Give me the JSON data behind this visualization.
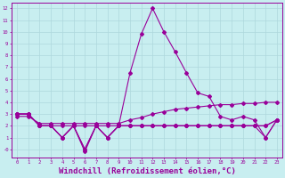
{
  "bg_color": "#c8eef0",
  "grid_color": "#aed8dc",
  "line_color": "#990099",
  "xlabel": "Windchill (Refroidissement éolien,°C)",
  "xlabel_fontsize": 6.5,
  "ylim": [
    -0.7,
    12.5
  ],
  "xlim": [
    -0.5,
    23.5
  ],
  "xtick_labels": [
    "0",
    "1",
    "2",
    "3",
    "4",
    "5",
    "6",
    "7",
    "8",
    "9",
    "10",
    "11",
    "12",
    "13",
    "14",
    "15",
    "16",
    "17",
    "18",
    "19",
    "20",
    "21",
    "22",
    "23"
  ],
  "ytick_labels": [
    "-0",
    "1",
    "2",
    "3",
    "4",
    "5",
    "6",
    "7",
    "8",
    "9",
    "10",
    "11",
    "12"
  ],
  "ytick_values": [
    0,
    1,
    2,
    3,
    4,
    5,
    6,
    7,
    8,
    9,
    10,
    11,
    12
  ],
  "lines": [
    {
      "x": [
        0,
        1,
        2,
        3,
        4,
        5,
        6,
        7,
        8,
        9,
        10,
        11,
        12,
        13,
        14,
        15,
        16,
        17,
        18,
        19,
        20,
        21,
        22,
        23
      ],
      "y": [
        3,
        3,
        2,
        2,
        2,
        2,
        2,
        2,
        2,
        2,
        2,
        2,
        2,
        2,
        2,
        2,
        2,
        2,
        2,
        2,
        2,
        2,
        2,
        2.5
      ]
    },
    {
      "x": [
        0,
        1,
        2,
        3,
        4,
        5,
        6,
        7,
        8,
        9,
        10,
        11,
        12,
        13,
        14,
        15,
        16,
        17,
        18,
        19,
        20,
        21,
        22,
        23
      ],
      "y": [
        2.8,
        2.8,
        2.2,
        2.2,
        2.2,
        2.2,
        2.2,
        2.2,
        2.2,
        2.2,
        2.5,
        2.7,
        3.0,
        3.2,
        3.4,
        3.5,
        3.6,
        3.7,
        3.8,
        3.8,
        3.9,
        3.9,
        4.0,
        4.0
      ]
    },
    {
      "x": [
        0,
        1,
        2,
        3,
        4,
        5,
        6,
        7,
        8,
        9,
        10,
        11,
        12,
        13,
        14,
        15,
        16,
        17,
        18,
        19,
        20,
        21,
        22,
        23
      ],
      "y": [
        3,
        3,
        2,
        2,
        1,
        2,
        0,
        2,
        1,
        2,
        2,
        2,
        2,
        2,
        2,
        2,
        2,
        2,
        2,
        2,
        2,
        2,
        1,
        2.5
      ]
    },
    {
      "x": [
        0,
        1,
        2,
        3,
        4,
        5,
        6,
        7,
        8,
        9,
        10,
        11,
        12,
        13,
        14,
        15,
        16,
        17,
        18,
        19,
        20,
        21,
        22,
        23
      ],
      "y": [
        3,
        3,
        2,
        2,
        1,
        2,
        -0.2,
        2,
        1,
        2,
        2,
        2,
        2,
        2,
        2,
        2,
        2,
        2,
        2,
        2,
        2,
        2,
        2,
        2.5
      ]
    },
    {
      "x": [
        0,
        1,
        2,
        3,
        4,
        5,
        6,
        7,
        8,
        9,
        10,
        11,
        12,
        13,
        14,
        15,
        16,
        17,
        18,
        19,
        20,
        21,
        22,
        23
      ],
      "y": [
        3,
        3,
        2,
        2,
        1,
        2,
        0,
        2,
        1,
        2,
        6.5,
        9.8,
        12,
        10,
        8.3,
        6.5,
        4.8,
        4.5,
        2.8,
        2.5,
        2.8,
        2.5,
        1.0,
        2.5
      ]
    }
  ],
  "marker": "D",
  "markersize": 2.0,
  "linewidth": 0.8
}
